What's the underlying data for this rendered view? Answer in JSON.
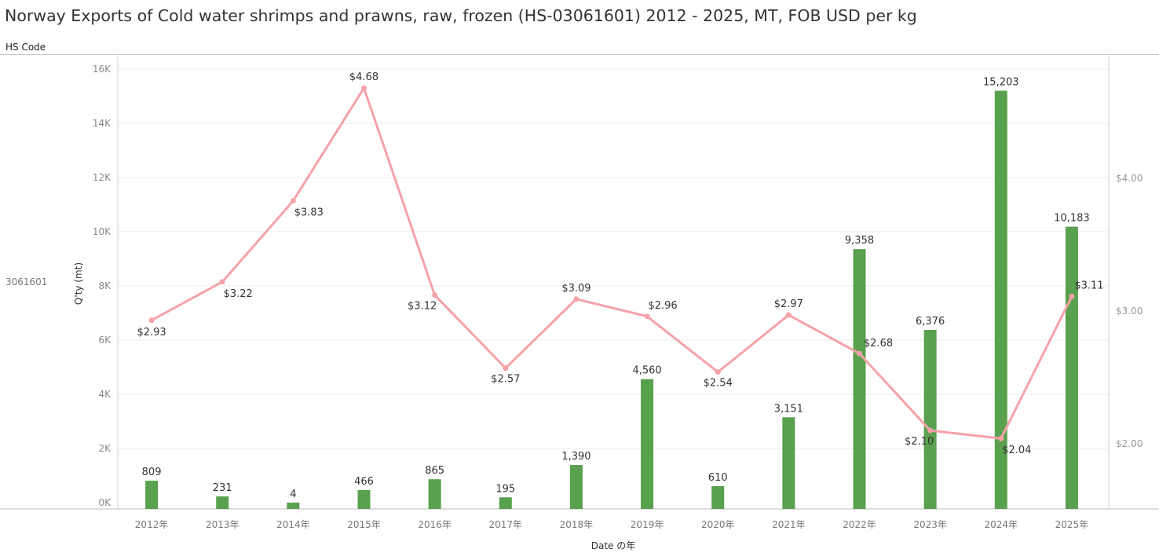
{
  "title": "Norway Exports of Cold water shrimps and prawns, raw, frozen  (HS-03061601) 2012 - 2025, MT, FOB USD per kg",
  "row_header": "HS Code",
  "row_value": "3061601",
  "chart_data": {
    "type": "bar+line",
    "categories": [
      "2012年",
      "2013年",
      "2014年",
      "2015年",
      "2016年",
      "2017年",
      "2018年",
      "2019年",
      "2020年",
      "2021年",
      "2022年",
      "2023年",
      "2024年",
      "2025年"
    ],
    "xlabel": "Date の年",
    "ylabel": "Q'ty (mt)",
    "y_left_ticks": [
      "0K",
      "2K",
      "4K",
      "6K",
      "8K",
      "10K",
      "12K",
      "14K",
      "16K"
    ],
    "y_left_range": [
      0,
      16000
    ],
    "y_right_ticks": [
      "$2.00",
      "$3.00",
      "$4.00"
    ],
    "y_right_range": [
      1.5,
      4.95
    ],
    "grid": "horizontal",
    "series": [
      {
        "kind": "bar",
        "color": "#59a14f",
        "values": [
          809,
          231,
          4,
          466,
          865,
          195,
          1390,
          4560,
          610,
          3151,
          9358,
          6376,
          15203,
          10183
        ],
        "labels": [
          "809",
          "231",
          "4",
          "466",
          "865",
          "195",
          "1,390",
          "4,560",
          "610",
          "3,151",
          "9,358",
          "6,376",
          "15,203",
          "10,183"
        ]
      },
      {
        "kind": "line",
        "color": "#f4a2a8",
        "values": [
          2.93,
          3.22,
          3.83,
          4.68,
          3.12,
          2.57,
          3.09,
          2.96,
          2.54,
          2.97,
          2.68,
          2.1,
          2.04,
          3.11
        ],
        "labels": [
          "$2.93",
          "$3.22",
          "$3.83",
          "$4.68",
          "$3.12",
          "$2.57",
          "$3.09",
          "$2.96",
          "$2.54",
          "$2.97",
          "$2.68",
          "$2.10",
          "$2.04",
          "$3.11"
        ]
      }
    ]
  }
}
